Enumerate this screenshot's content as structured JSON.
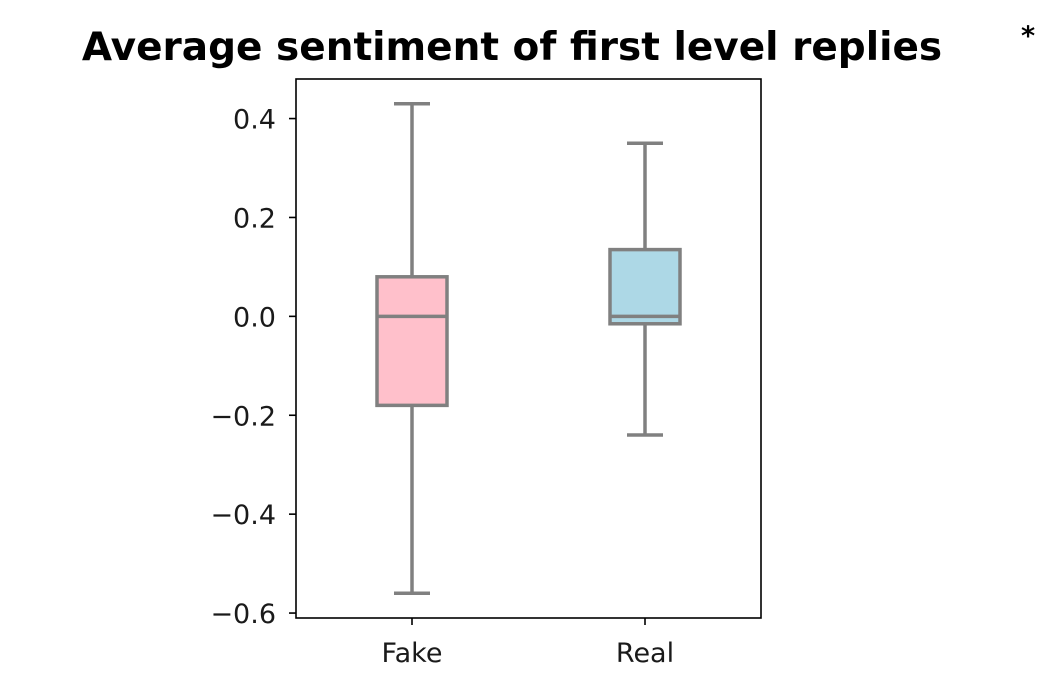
{
  "chart_data": {
    "type": "box",
    "title": "Average sentiment of first level replies",
    "title_marker": "*",
    "xlabel": "",
    "ylabel": "",
    "categories": [
      "Fake",
      "Real"
    ],
    "ylim": [
      -0.61,
      0.48
    ],
    "yticks": [
      0.4,
      0.2,
      0.0,
      -0.2,
      -0.4,
      -0.6
    ],
    "ytick_labels": [
      "0.4",
      "0.2",
      "0.0",
      "−0.2",
      "−0.4",
      "−0.6"
    ],
    "grid": false,
    "boxes": [
      {
        "category": "Fake",
        "whisker_low": -0.56,
        "q1": -0.18,
        "median": 0.0,
        "q3": 0.08,
        "whisker_high": 0.43,
        "fill": "#ffc0cb"
      },
      {
        "category": "Real",
        "whisker_low": -0.24,
        "q1": -0.015,
        "median": 0.0,
        "q3": 0.135,
        "whisker_high": 0.35,
        "fill": "#add8e6"
      }
    ],
    "line_color": "#808080"
  }
}
